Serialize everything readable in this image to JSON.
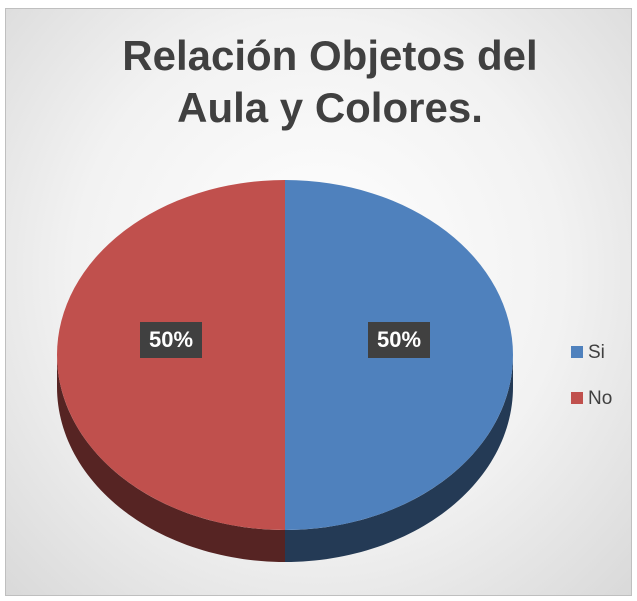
{
  "chart_data": {
    "type": "pie",
    "title": "Relación Objetos del Aula y Colores.",
    "categories": [
      "Si",
      "No"
    ],
    "values": [
      50,
      50
    ],
    "value_labels": [
      "50%",
      "50%"
    ],
    "colors": [
      "#4f81bd",
      "#c0504d"
    ],
    "legend": "right"
  }
}
